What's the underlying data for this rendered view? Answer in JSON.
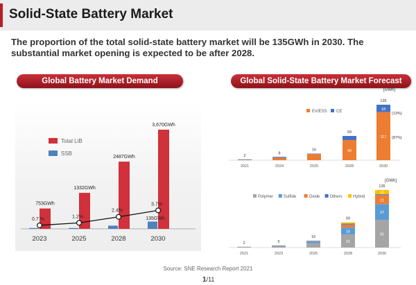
{
  "header": {
    "title": "Solid-State Battery Market",
    "subtitle": "The proportion of the total solid-state battery market will be 135GWh in 2030. The substantial market opening is expected to be after 2028."
  },
  "left_panel_title": "Global Battery Market Demand",
  "right_panel_title": "Global Solid-State Battery Market Forecast",
  "source": "Source: SNE Research Report 2021",
  "page": {
    "current": "1",
    "total": "/11"
  },
  "colors": {
    "accent": "#b3202a",
    "total_lib": "#d0313b",
    "ssb": "#4f81bd",
    "ev_ess": "#ed7d31",
    "ce": "#4472c4",
    "polymer": "#a5a5a5",
    "sulfide": "#5b9bd5",
    "oxide": "#ed7d31",
    "others": "#4472c4",
    "hybrid": "#ffc000"
  },
  "chart_data": [
    {
      "type": "bar",
      "categories": [
        "2023",
        "2025",
        "2028",
        "2030"
      ],
      "series": [
        {
          "name": "Total LiB",
          "values": [
            753,
            1332,
            2487,
            3670
          ],
          "labels": [
            "753GWh",
            "1332GWh",
            "2487GWh",
            "3,670GWh"
          ]
        },
        {
          "name": "SSB",
          "values": [
            5,
            16,
            59,
            135
          ],
          "labels": [
            "",
            "",
            "",
            "135GWh"
          ]
        }
      ],
      "line": {
        "values": [
          0.7,
          1.2,
          2.4,
          3.7
        ],
        "labels": [
          "0.7 %",
          "1.2%",
          "2.4%",
          "3.7%"
        ]
      },
      "legend": "top-left",
      "ylim": [
        0,
        3800
      ]
    },
    {
      "type": "bar",
      "stacked": true,
      "unit": "[GWh]",
      "categories": [
        "2021",
        "2024",
        "2025",
        "2028",
        "2030"
      ],
      "totals": [
        2,
        8,
        16,
        59,
        135
      ],
      "series": [
        {
          "name": "EV/ESS",
          "values": [
            1,
            6,
            15,
            49,
            117
          ],
          "labels": [
            "",
            "",
            "",
            "49",
            "117"
          ]
        },
        {
          "name": "CE",
          "values": [
            1,
            2,
            1,
            10,
            18
          ],
          "labels": [
            "",
            "",
            "",
            "",
            "18"
          ]
        }
      ],
      "annotations": [
        "(13%)",
        "(87%)"
      ],
      "legend": "top-center",
      "ylim": [
        0,
        140
      ]
    },
    {
      "type": "bar",
      "stacked": true,
      "unit": "[GWh]",
      "categories": [
        "2021",
        "2023",
        "2025",
        "2028",
        "2030"
      ],
      "totals": [
        2,
        5,
        16,
        59,
        135
      ],
      "series": [
        {
          "name": "Polymer",
          "values": [
            2,
            4,
            10,
            31,
            65
          ],
          "labels": [
            "",
            "",
            "",
            "31",
            "65"
          ]
        },
        {
          "name": "Sulfide",
          "values": [
            0,
            1,
            4,
            16,
            37
          ],
          "labels": [
            "",
            "",
            "",
            "16",
            "37"
          ]
        },
        {
          "name": "Oxide",
          "values": [
            0,
            0,
            1,
            7,
            21
          ],
          "labels": [
            "",
            "",
            "",
            "",
            "21"
          ]
        },
        {
          "name": "Others",
          "values": [
            0,
            0,
            1,
            2,
            2
          ],
          "labels": [
            "",
            "",
            "",
            "",
            ""
          ]
        },
        {
          "name": "Hybrid",
          "values": [
            0,
            0,
            0,
            3,
            10
          ],
          "labels": [
            "",
            "",
            "",
            "",
            "10"
          ]
        }
      ],
      "legend": "top-left",
      "ylim": [
        0,
        140
      ]
    }
  ]
}
